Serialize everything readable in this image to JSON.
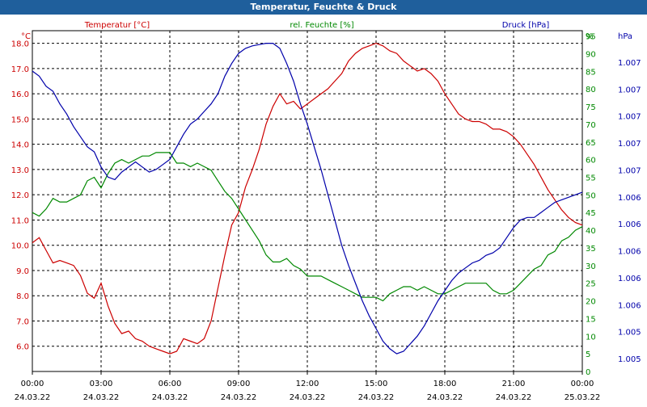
{
  "window_title": "Temperatur, Feuchte & Druck",
  "chart_data": {
    "type": "line",
    "title": "Temperatur, Feuchte & Druck",
    "colors": {
      "temperature": "#cc0000",
      "humidity": "#008800",
      "pressure": "#0000aa",
      "title_bar": "#1f5f9c"
    },
    "grid": true,
    "x_ticks": [
      {
        "time": "00:00",
        "date": "24.03.22"
      },
      {
        "time": "03:00",
        "date": "24.03.22"
      },
      {
        "time": "06:00",
        "date": "24.03.22"
      },
      {
        "time": "09:00",
        "date": "24.03.22"
      },
      {
        "time": "12:00",
        "date": "24.03.22"
      },
      {
        "time": "15:00",
        "date": "24.03.22"
      },
      {
        "time": "18:00",
        "date": "24.03.22"
      },
      {
        "time": "21:00",
        "date": "24.03.22"
      },
      {
        "time": "00:00",
        "date": "25.03.22"
      }
    ],
    "x_hours_range": [
      0,
      24
    ],
    "axes": {
      "temperature": {
        "label": "Temperatur [°C]",
        "unit": "°C",
        "range": [
          5.0,
          18.5
        ],
        "ticks": [
          "6.0",
          "7.0",
          "8.0",
          "9.0",
          "10.0",
          "11.0",
          "12.0",
          "13.0",
          "14.0",
          "15.0",
          "16.0",
          "17.0",
          "18.0"
        ]
      },
      "humidity": {
        "label": "rel. Feuchte [%]",
        "unit": "%",
        "range": [
          0,
          96.5
        ],
        "ticks": [
          "0",
          "5",
          "10",
          "15",
          "20",
          "25",
          "30",
          "35",
          "40",
          "45",
          "50",
          "55",
          "60",
          "65",
          "70",
          "75",
          "80",
          "85",
          "90",
          "95"
        ]
      },
      "pressure": {
        "label": "Druck [hPa]",
        "unit": "hPa",
        "ticks": [
          "1.005",
          "1.005",
          "1.006",
          "1.006",
          "1.006",
          "1.006",
          "1.006",
          "1.007",
          "1.007",
          "1.007",
          "1.007",
          "1.007"
        ]
      }
    },
    "series": [
      {
        "name": "Temperatur [°C]",
        "axis": "temperature",
        "x": [
          0,
          0.3,
          0.6,
          0.9,
          1.2,
          1.5,
          1.8,
          2.1,
          2.4,
          2.7,
          3.0,
          3.3,
          3.6,
          3.9,
          4.2,
          4.5,
          4.8,
          5.1,
          5.4,
          5.7,
          6.0,
          6.3,
          6.6,
          6.9,
          7.2,
          7.5,
          7.8,
          8.1,
          8.4,
          8.7,
          9.0,
          9.3,
          9.6,
          9.9,
          10.2,
          10.5,
          10.8,
          11.1,
          11.4,
          11.7,
          12.0,
          12.3,
          12.6,
          12.9,
          13.2,
          13.5,
          13.8,
          14.1,
          14.4,
          14.7,
          15.0,
          15.3,
          15.6,
          15.9,
          16.2,
          16.5,
          16.8,
          17.1,
          17.4,
          17.7,
          18.0,
          18.3,
          18.6,
          18.9,
          19.2,
          19.5,
          19.8,
          20.1,
          20.4,
          20.7,
          21.0,
          21.3,
          21.6,
          21.9,
          22.2,
          22.5,
          22.8,
          23.1,
          23.4,
          23.7,
          24.0
        ],
        "values": [
          10.1,
          10.3,
          9.8,
          9.3,
          9.4,
          9.3,
          9.2,
          8.8,
          8.1,
          7.9,
          8.5,
          7.6,
          6.9,
          6.5,
          6.6,
          6.3,
          6.2,
          6.0,
          5.9,
          5.8,
          5.7,
          5.8,
          6.3,
          6.2,
          6.1,
          6.3,
          7.0,
          8.3,
          9.6,
          10.8,
          11.3,
          12.3,
          13.0,
          13.8,
          14.8,
          15.5,
          16.0,
          15.6,
          15.7,
          15.4,
          15.6,
          15.8,
          16.0,
          16.2,
          16.5,
          16.8,
          17.3,
          17.6,
          17.8,
          17.9,
          18.0,
          17.9,
          17.7,
          17.6,
          17.3,
          17.1,
          16.9,
          17.0,
          16.8,
          16.5,
          16.0,
          15.6,
          15.2,
          15.0,
          14.9,
          14.9,
          14.8,
          14.6,
          14.6,
          14.5,
          14.3,
          14.0,
          13.6,
          13.2,
          12.7,
          12.2,
          11.8,
          11.4,
          11.1,
          10.9,
          10.8
        ]
      },
      {
        "name": "rel. Feuchte [%]",
        "axis": "humidity",
        "x": [
          0,
          0.3,
          0.6,
          0.9,
          1.2,
          1.5,
          1.8,
          2.1,
          2.4,
          2.7,
          3.0,
          3.3,
          3.6,
          3.9,
          4.2,
          4.5,
          4.8,
          5.1,
          5.4,
          5.7,
          6.0,
          6.3,
          6.6,
          6.9,
          7.2,
          7.5,
          7.8,
          8.1,
          8.4,
          8.7,
          9.0,
          9.3,
          9.6,
          9.9,
          10.2,
          10.5,
          10.8,
          11.1,
          11.4,
          11.7,
          12.0,
          12.3,
          12.6,
          12.9,
          13.2,
          13.5,
          13.8,
          14.1,
          14.4,
          14.7,
          15.0,
          15.3,
          15.6,
          15.9,
          16.2,
          16.5,
          16.8,
          17.1,
          17.4,
          17.7,
          18.0,
          18.3,
          18.6,
          18.9,
          19.2,
          19.5,
          19.8,
          20.1,
          20.4,
          20.7,
          21.0,
          21.3,
          21.6,
          21.9,
          22.2,
          22.5,
          22.8,
          23.1,
          23.4,
          23.7,
          24.0
        ],
        "values": [
          45,
          44,
          46,
          49,
          48,
          48,
          49,
          50,
          54,
          55,
          52,
          56,
          59,
          60,
          59,
          60,
          61,
          61,
          62,
          62,
          62,
          59,
          59,
          58,
          59,
          58,
          57,
          54,
          51,
          49,
          46,
          43,
          40,
          37,
          33,
          31,
          31,
          32,
          30,
          29,
          27,
          27,
          27,
          26,
          25,
          24,
          23,
          22,
          21,
          21,
          21,
          20,
          22,
          23,
          24,
          24,
          23,
          24,
          23,
          22,
          22,
          23,
          24,
          25,
          25,
          25,
          25,
          23,
          22,
          22,
          23,
          25,
          27,
          29,
          30,
          33,
          34,
          37,
          38,
          40,
          41
        ]
      },
      {
        "name": "Druck [hPa]",
        "axis": "pressure",
        "x": [
          0,
          0.3,
          0.6,
          0.9,
          1.2,
          1.5,
          1.8,
          2.1,
          2.4,
          2.7,
          3.0,
          3.3,
          3.6,
          3.9,
          4.2,
          4.5,
          4.8,
          5.1,
          5.4,
          5.7,
          6.0,
          6.3,
          6.6,
          6.9,
          7.2,
          7.5,
          7.8,
          8.1,
          8.4,
          8.7,
          9.0,
          9.3,
          9.6,
          9.9,
          10.2,
          10.5,
          10.8,
          11.1,
          11.4,
          11.7,
          12.0,
          12.3,
          12.6,
          12.9,
          13.2,
          13.5,
          13.8,
          14.1,
          14.4,
          14.7,
          15.0,
          15.3,
          15.6,
          15.9,
          16.2,
          16.5,
          16.8,
          17.1,
          17.4,
          17.7,
          18.0,
          18.3,
          18.6,
          18.9,
          19.2,
          19.5,
          19.8,
          20.1,
          20.4,
          20.7,
          21.0,
          21.3,
          21.6,
          21.9,
          22.2,
          22.5,
          22.8,
          23.1,
          23.4,
          23.7,
          24.0
        ],
        "values": [
          16.9,
          16.7,
          16.3,
          16.1,
          15.6,
          15.2,
          14.7,
          14.3,
          13.9,
          13.7,
          13.1,
          12.7,
          12.6,
          12.9,
          13.1,
          13.3,
          13.1,
          12.9,
          13.0,
          13.2,
          13.4,
          13.9,
          14.4,
          14.8,
          15.0,
          15.3,
          15.6,
          16.0,
          16.7,
          17.2,
          17.6,
          17.8,
          17.9,
          17.95,
          18.0,
          18.0,
          17.8,
          17.2,
          16.5,
          15.6,
          14.8,
          13.9,
          13.0,
          12.0,
          11.0,
          10.0,
          9.2,
          8.5,
          7.8,
          7.2,
          6.7,
          6.2,
          5.9,
          5.7,
          5.8,
          6.1,
          6.4,
          6.8,
          7.3,
          7.8,
          8.2,
          8.6,
          8.9,
          9.1,
          9.3,
          9.4,
          9.6,
          9.7,
          9.9,
          10.3,
          10.7,
          11.0,
          11.1,
          11.1,
          11.3,
          11.5,
          11.7,
          11.8,
          11.9,
          12.0,
          12.1
        ]
      }
    ]
  }
}
